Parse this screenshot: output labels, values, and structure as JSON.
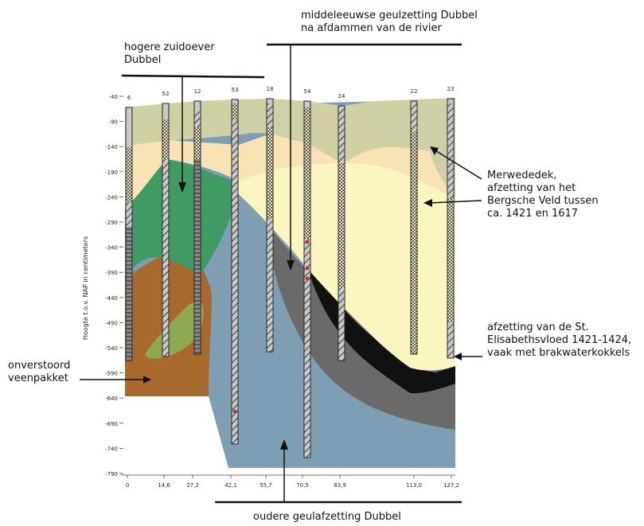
{
  "y_axis": {
    "label": "Hoogte t.o.v. NAP in centimeters",
    "ticks": [
      "-40",
      "-90",
      "-140",
      "-190",
      "-240",
      "-290",
      "-340",
      "-390",
      "-440",
      "-490",
      "-540",
      "-590",
      "-640",
      "-690",
      "-740",
      "-790"
    ]
  },
  "x_axis": {
    "ticks": [
      "0",
      "14,6",
      "27,2",
      "42,1",
      "55,7",
      "70,5",
      "83,9",
      "113,0",
      "127,2"
    ]
  },
  "boreholes": [
    "6",
    "52",
    "12",
    "53",
    "18",
    "54",
    "24",
    "22",
    "23"
  ],
  "annotations": {
    "hogere_zuidoever": [
      "hogere zuidoever",
      "Dubbel"
    ],
    "middeleeuwse": [
      "middeleeuwse geulzetting Dubbel",
      "na afdammen van de rivier"
    ],
    "merwededek": [
      "Merwededek,",
      "afzetting van het",
      "Bergsche Veld tussen",
      "ca. 1421 en 1617"
    ],
    "elisabeth": [
      "afzetting van de St.",
      "Elisabethsvloed 1421-1424,",
      "vaak met brakwaterkokkels"
    ],
    "veen": [
      "onverstoord",
      "veenpakket"
    ],
    "oudere": "oudere geulafzetting Dubbel"
  },
  "colors": {
    "top_layer": "#cfd1a4",
    "merwede_band": "#f8e3b5",
    "pale_yellow": "#fbf5c0",
    "green": "#3f9a63",
    "brown": "#a8692c",
    "blue_grey": "#7e9fb3",
    "dark_grey": "#6a6a6a",
    "black": "#111111"
  }
}
